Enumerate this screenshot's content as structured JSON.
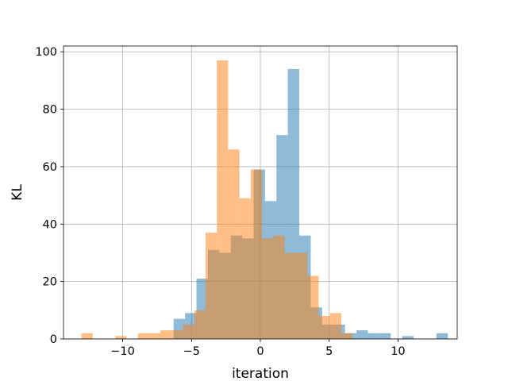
{
  "chart_data": {
    "type": "histogram",
    "title": "",
    "xlabel": "iteration",
    "ylabel": "KL",
    "xlim": [
      -14.3,
      14.3
    ],
    "ylim": [
      0,
      102
    ],
    "xticks": [
      -10,
      -5,
      0,
      5,
      10
    ],
    "yticks": [
      0,
      20,
      40,
      60,
      80,
      100
    ],
    "xtick_labels": [
      "−10",
      "−5",
      "0",
      "5",
      "10"
    ],
    "ytick_labels": [
      "0",
      "20",
      "40",
      "60",
      "80",
      "100"
    ],
    "grid": true,
    "legend": null,
    "series": [
      {
        "color": "#1f77b4",
        "opacity": 0.5,
        "bin_edges": [
          -6.3,
          -5.47,
          -4.64,
          -3.81,
          -2.98,
          -2.15,
          -1.32,
          -0.49,
          0.34,
          1.17,
          2.0,
          2.83,
          3.66,
          4.49,
          5.32,
          6.15,
          6.98,
          7.81,
          8.64,
          9.47,
          10.3,
          11.13,
          11.96,
          12.79,
          13.62
        ],
        "counts": [
          7,
          9,
          21,
          31,
          30,
          36,
          35,
          59,
          48,
          71,
          94,
          36,
          11,
          5,
          5,
          2,
          3,
          2,
          2,
          0,
          1,
          0,
          0,
          2
        ]
      },
      {
        "color": "#ff7f0e",
        "opacity": 0.5,
        "bin_edges": [
          -13.0,
          -12.18,
          -11.36,
          -10.54,
          -9.72,
          -8.9,
          -8.08,
          -7.26,
          -6.44,
          -5.62,
          -4.8,
          -3.98,
          -3.16,
          -2.34,
          -1.52,
          -0.7,
          0.12,
          0.94,
          1.76,
          2.58,
          3.42,
          4.24,
          5.06,
          5.88,
          6.7
        ],
        "counts": [
          2,
          0,
          0,
          1,
          0,
          2,
          2,
          3,
          3,
          5,
          10,
          37,
          97,
          66,
          49,
          59,
          35,
          36,
          30,
          30,
          22,
          8,
          9,
          2
        ]
      }
    ]
  }
}
